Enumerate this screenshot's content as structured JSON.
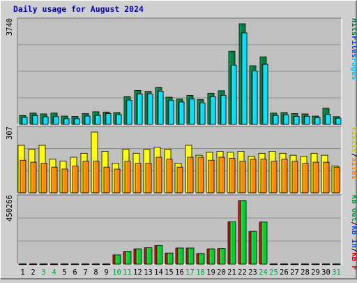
{
  "chart_data": {
    "type": "bar",
    "title": "Daily usage for August 2024",
    "categories": [
      "1",
      "2",
      "3",
      "4",
      "5",
      "6",
      "7",
      "8",
      "9",
      "10",
      "11",
      "12",
      "13",
      "14",
      "15",
      "16",
      "17",
      "18",
      "19",
      "20",
      "21",
      "22",
      "23",
      "24",
      "25",
      "26",
      "27",
      "28",
      "29",
      "30",
      "31"
    ],
    "weekend_days": [
      "3",
      "4",
      "10",
      "11",
      "17",
      "18",
      "24",
      "25",
      "31"
    ],
    "panels": [
      {
        "id": "pages-files-hits",
        "ymax_label": "3740",
        "ymax": 3740,
        "series": [
          {
            "name": "Hits",
            "color": "#008040",
            "values": [
              330,
              420,
              390,
              420,
              310,
              300,
              400,
              470,
              460,
              440,
              1030,
              1260,
              1230,
              1370,
              1010,
              940,
              1080,
              920,
              1160,
              1250,
              2720,
              3740,
              2180,
              2510,
              420,
              440,
              400,
              390,
              310,
              600,
              290
            ]
          },
          {
            "name": "Files",
            "color": "#00a0c0",
            "values": [
              260,
              330,
              280,
              290,
              210,
              210,
              310,
              330,
              400,
              360,
              900,
              1130,
              1130,
              1230,
              890,
              830,
              940,
              790,
              1030,
              1080,
              2200,
              3400,
              1980,
              2230,
              330,
              350,
              300,
              300,
              250,
              370,
              230
            ]
          },
          {
            "name": "Pages",
            "color": "#00e0ff",
            "values": [
              260,
              330,
              280,
              290,
              210,
              210,
              310,
              330,
              400,
              360,
              900,
              1130,
              1130,
              1230,
              890,
              830,
              940,
              790,
              1030,
              1080,
              2200,
              3400,
              1980,
              2230,
              330,
              350,
              300,
              300,
              250,
              370,
              230
            ]
          }
        ],
        "legend": [
          {
            "name": "Pages",
            "color": "#00c8ff"
          },
          {
            "name": "Files",
            "color": "#0050ff"
          },
          {
            "name": "Hits",
            "color": "#008040"
          }
        ]
      },
      {
        "id": "visits-sites",
        "ymax_label": "307",
        "ymax": 307,
        "series": [
          {
            "name": "Visits",
            "color": "#ffff00",
            "values": [
              240,
              220,
              240,
              170,
              160,
              180,
              200,
              307,
              210,
              150,
              220,
              200,
              220,
              230,
              220,
              150,
              240,
              190,
              205,
              210,
              205,
              210,
              185,
              200,
              210,
              200,
              190,
              185,
              200,
              190,
              135
            ]
          },
          {
            "name": "Sites",
            "color": "#ff8800",
            "values": [
              165,
              155,
              150,
              130,
              120,
              135,
              160,
              160,
              130,
              120,
              160,
              150,
              150,
              180,
              170,
              130,
              180,
              180,
              165,
              180,
              175,
              160,
              170,
              170,
              160,
              170,
              160,
              150,
              155,
              155,
              130
            ]
          }
        ],
        "legend": [
          {
            "name": "Sites",
            "color": "#ff8000"
          },
          {
            "name": "/",
            "color": "#000000"
          },
          {
            "name": "Visits",
            "color": "#c8c800"
          }
        ]
      },
      {
        "id": "kbytes",
        "ymax_label": "450266",
        "ymax": 450266,
        "series": [
          {
            "name": "KB F",
            "color": "#ff0000",
            "values": [
              1500,
              1500,
              1500,
              1500,
              1500,
              1500,
              1500,
              1500,
              1500,
              65000,
              90000,
              108000,
              116000,
              132000,
              78000,
              114000,
              114000,
              75000,
              108000,
              110000,
              300000,
              450266,
              232000,
              298000,
              1500,
              1500,
              1500,
              1500,
              1500,
              1500,
              1500
            ]
          },
          {
            "name": "KB In",
            "color": "#00cc33",
            "values": [
              1500,
              1500,
              1500,
              1500,
              1500,
              1500,
              1500,
              1500,
              1500,
              65000,
              90000,
              108000,
              116000,
              132000,
              78000,
              114000,
              114000,
              75000,
              108000,
              110000,
              300000,
              450266,
              232000,
              298000,
              1500,
              1500,
              1500,
              1500,
              1500,
              1500,
              1500
            ]
          },
          {
            "name": "KB Out",
            "color": "#00cc33",
            "values": [
              1500,
              1500,
              1500,
              1500,
              1500,
              1500,
              1500,
              1500,
              1500,
              65000,
              90000,
              108000,
              116000,
              132000,
              78000,
              114000,
              114000,
              75000,
              108000,
              110000,
              300000,
              450266,
              232000,
              298000,
              1500,
              1500,
              1500,
              1500,
              1500,
              1500,
              1500
            ]
          }
        ],
        "legend": [
          {
            "name": "KB F",
            "color": "#ff0000"
          },
          {
            "name": "/",
            "color": "#000000"
          },
          {
            "name": "KB In",
            "color": "#0050ff"
          },
          {
            "name": "/",
            "color": "#000000"
          },
          {
            "name": "KB Out",
            "color": "#00a040"
          }
        ]
      }
    ],
    "grid": true
  }
}
